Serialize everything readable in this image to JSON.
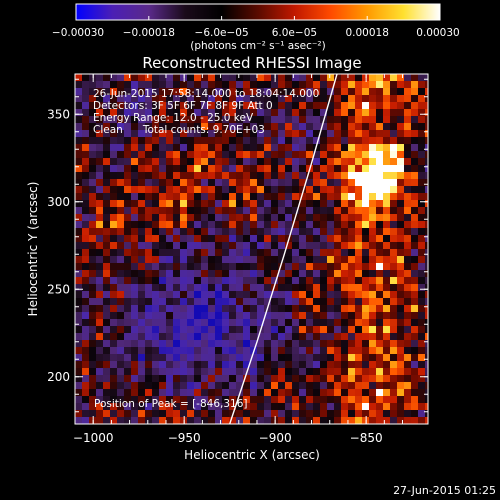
{
  "chart_data": {
    "type": "heatmap",
    "title": "Reconstructed RHESSI Image",
    "xlabel": "Heliocentric X (arcsec)",
    "ylabel": "Heliocentric Y (arcsec)",
    "xlim": [
      -1010,
      -816
    ],
    "ylim": [
      173,
      373
    ],
    "xticks": [
      -1000,
      -950,
      -900,
      -850
    ],
    "xtick_labels": [
      "−1000",
      "−950",
      "−900",
      "−850"
    ],
    "yticks": [
      200,
      250,
      300,
      350
    ],
    "ytick_labels": [
      "200",
      "250",
      "300",
      "350"
    ],
    "colorbar": {
      "range": [
        -0.0003,
        0.0003
      ],
      "ticks": [
        -0.0003,
        -0.00018,
        -6e-05,
        6e-05,
        0.00018,
        0.0003
      ],
      "tick_labels": [
        "−0.00030",
        "−0.00018",
        "−6.0e−05",
        "6.0e−05",
        "0.00018",
        "0.00030"
      ],
      "units": "(photons cm⁻² s⁻¹ asec⁻²)",
      "colors": [
        "#0000ff",
        "#4b1fb5",
        "#5a2a8a",
        "#1a0a1a",
        "#000000",
        "#5a0a00",
        "#c01800",
        "#ff4a00",
        "#ff9a00",
        "#ffe030",
        "#ffffff"
      ]
    },
    "info_lines": [
      "26-Jun-2015 17:58:14.000 to 18:04:14.000",
      "Detectors: 3F 5F 6F 7F 8F 9F Att 0",
      "Energy Range: 12.0 - 25.0 keV",
      "Clean      Total counts: 9.70E+03"
    ],
    "peak_label": "Position of Peak = [-846,316]",
    "peak_position": [
      -846,
      316
    ],
    "limb_curve": [
      [
        -925,
        173
      ],
      [
        -910,
        220
      ],
      [
        -895,
        270
      ],
      [
        -880,
        322
      ],
      [
        -866,
        373
      ]
    ]
  },
  "timestamp": "27-Jun-2015 01:25"
}
